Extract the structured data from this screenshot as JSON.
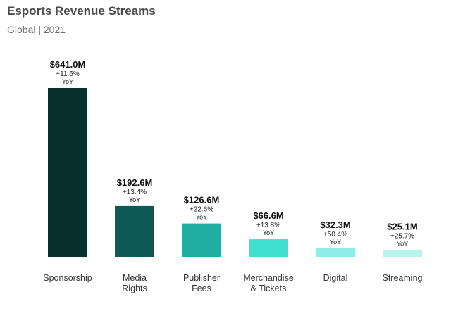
{
  "chart_data": {
    "type": "bar",
    "title": "Esports Revenue Streams",
    "subtitle": "Global | 2021",
    "xlabel": "",
    "ylabel": "",
    "unit_prefix": "$",
    "unit_suffix": "M",
    "ylim": [
      0,
      641.0
    ],
    "categories": [
      [
        "Sponsorship"
      ],
      [
        "Media",
        "Rights"
      ],
      [
        "Publisher",
        "Fees"
      ],
      [
        "Merchandise",
        "& Tickets"
      ],
      [
        "Digital"
      ],
      [
        "Streaming"
      ]
    ],
    "values": [
      641.0,
      192.6,
      126.6,
      66.6,
      32.3,
      25.1
    ],
    "value_labels": [
      "$641.0M",
      "$192.6M",
      "$126.6M",
      "$66.6M",
      "$32.3M",
      "$25.1M"
    ],
    "yoy_changes": [
      "+11.6%",
      "+13.4%",
      "+22.6%",
      "+13.8%",
      "+50.4%",
      "+25.7%"
    ],
    "yoy_label": "YoY",
    "colors": [
      "#07302f",
      "#0e5a57",
      "#1fae9f",
      "#40dfd1",
      "#8ceee6",
      "#b5f3ee"
    ]
  }
}
